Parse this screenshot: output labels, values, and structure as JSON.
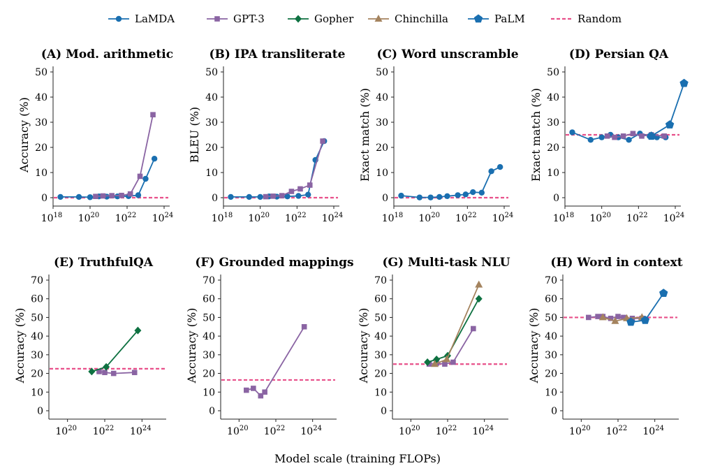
{
  "x_axis_label": "Model scale (training FLOPs)",
  "legend": [
    {
      "name": "LaMDA",
      "color": "#1a6fb0",
      "marker": "circle"
    },
    {
      "name": "GPT-3",
      "color": "#8a64a3",
      "marker": "square"
    },
    {
      "name": "Gopher",
      "color": "#0e7141",
      "marker": "diamond"
    },
    {
      "name": "Chinchilla",
      "color": "#a4835e",
      "marker": "triangle"
    },
    {
      "name": "PaLM",
      "color": "#1a6fb0",
      "marker": "pentagon"
    },
    {
      "name": "Random",
      "color": "#e8508a",
      "marker": "dashed-line"
    }
  ],
  "chart_data": [
    {
      "type": "line",
      "title": "(A) Mod. arithmetic",
      "ylabel": "Accuracy (%)",
      "xscale": "log",
      "xlim": [
        1e+18,
        1e+24
      ],
      "xticks": [
        1e+18,
        1e+20,
        1e+22,
        1e+24
      ],
      "ylim": [
        0,
        50
      ],
      "yticks": [
        0,
        10,
        20,
        30,
        40,
        50
      ],
      "random": 0,
      "series": [
        {
          "name": "LaMDA",
          "x": [
            2.5e+18,
            2.5e+19,
            1e+20,
            3e+20,
            8e+20,
            3e+21,
            1.2e+22,
            4e+22,
            1e+23,
            3e+23
          ],
          "y": [
            0.3,
            0.3,
            0.2,
            0.5,
            0.4,
            0.5,
            0.6,
            1.0,
            7.5,
            15.5
          ]
        },
        {
          "name": "GPT-3",
          "x": [
            2e+20,
            5e+20,
            1.5e+21,
            5e+21,
            1.5e+22,
            5e+22,
            2.5e+23
          ],
          "y": [
            0.5,
            0.7,
            0.8,
            0.9,
            1.5,
            8.5,
            33
          ]
        }
      ]
    },
    {
      "type": "line",
      "title": "(B) IPA transliterate",
      "ylabel": "BLEU (%)",
      "xscale": "log",
      "xlim": [
        1e+18,
        1e+24
      ],
      "xticks": [
        1e+18,
        1e+20,
        1e+22,
        1e+24
      ],
      "ylim": [
        0,
        50
      ],
      "yticks": [
        0,
        10,
        20,
        30,
        40,
        50
      ],
      "random": 0,
      "series": [
        {
          "name": "LaMDA",
          "x": [
            2.5e+18,
            2.5e+19,
            1e+20,
            3e+20,
            8e+20,
            3e+21,
            1.2e+22,
            4e+22,
            1e+23,
            3e+23
          ],
          "y": [
            0.3,
            0.3,
            0.3,
            0.5,
            0.4,
            0.5,
            0.7,
            1.2,
            15,
            22.5
          ]
        },
        {
          "name": "GPT-3",
          "x": [
            2e+20,
            5e+20,
            1.5e+21,
            5e+21,
            1.5e+22,
            5e+22,
            2.5e+23
          ],
          "y": [
            0.4,
            0.6,
            0.8,
            2.5,
            3.5,
            5,
            22.5
          ]
        }
      ]
    },
    {
      "type": "line",
      "title": "(C) Word unscramble",
      "ylabel": "Exact match (%)",
      "xscale": "log",
      "xlim": [
        1e+18,
        1e+24
      ],
      "xticks": [
        1e+18,
        1e+20,
        1e+22,
        1e+24
      ],
      "ylim": [
        0,
        50
      ],
      "yticks": [
        0,
        10,
        20,
        30,
        40,
        50
      ],
      "random": 0,
      "series": [
        {
          "name": "LaMDA",
          "x": [
            2.5e+18,
            2.5e+19,
            1e+20,
            3e+20,
            8e+20,
            3e+21,
            8e+21,
            2e+22,
            6e+22,
            2e+23,
            6e+23
          ],
          "y": [
            0.8,
            0.1,
            0.1,
            0.3,
            0.6,
            1.0,
            1.3,
            2.2,
            2.0,
            10.5,
            12.2
          ]
        }
      ]
    },
    {
      "type": "line",
      "title": "(D) Persian QA",
      "ylabel": "Exact match (%)",
      "xscale": "log",
      "xlim": [
        1e+18,
        1e+24
      ],
      "xticks": [
        1e+18,
        1e+20,
        1e+22,
        1e+24
      ],
      "ylim": [
        0,
        50
      ],
      "yticks": [
        0,
        10,
        20,
        30,
        40,
        50
      ],
      "random": 25,
      "series": [
        {
          "name": "LaMDA",
          "x": [
            2.5e+18,
            2.5e+19,
            1e+20,
            3e+20,
            8e+20,
            3e+21,
            1.2e+22,
            4e+22,
            1e+23,
            3e+23
          ],
          "y": [
            26,
            23,
            24,
            25,
            24,
            23,
            25.5,
            24.5,
            24,
            24
          ]
        },
        {
          "name": "GPT-3",
          "x": [
            2e+20,
            5e+20,
            1.5e+21,
            5e+21,
            1.5e+22,
            5e+22,
            2.5e+23
          ],
          "y": [
            24.5,
            24.0,
            24.5,
            25.5,
            24.5,
            25.0,
            24.5
          ]
        },
        {
          "name": "PaLM",
          "x": [
            5e+22,
            5e+23,
            3e+24
          ],
          "y": [
            24.5,
            29,
            45.5
          ]
        }
      ]
    },
    {
      "type": "line",
      "title": "(E) TruthfulQA",
      "ylabel": "Accuracy (%)",
      "xscale": "log",
      "xlim": [
        1e+19,
        1e+25
      ],
      "xticks": [
        1e+20,
        1e+22,
        1e+24
      ],
      "ylim": [
        0,
        70
      ],
      "yticks": [
        0,
        10,
        20,
        30,
        40,
        50,
        60,
        70
      ],
      "random": 22.5,
      "series": [
        {
          "name": "GPT-3",
          "x": [
            5e+21,
            1e+22,
            3e+22,
            4e+23
          ],
          "y": [
            21,
            20.5,
            20,
            20.5
          ]
        },
        {
          "name": "Gopher",
          "x": [
            2e+21,
            1.2e+22,
            6e+23
          ],
          "y": [
            21,
            23.5,
            43
          ]
        }
      ]
    },
    {
      "type": "line",
      "title": "(F) Grounded mappings",
      "ylabel": "Accuracy (%)",
      "xscale": "log",
      "xlim": [
        1e+19,
        1e+25
      ],
      "xticks": [
        1e+20,
        1e+22,
        1e+24
      ],
      "ylim": [
        0,
        70
      ],
      "yticks": [
        0,
        10,
        20,
        30,
        40,
        50,
        60,
        70
      ],
      "random": 16.5,
      "series": [
        {
          "name": "GPT-3",
          "x": [
            2.5e+20,
            6e+20,
            1.5e+21,
            2.5e+21,
            3.5e+23
          ],
          "y": [
            11,
            12,
            8,
            10,
            45
          ]
        }
      ]
    },
    {
      "type": "line",
      "title": "(G) Multi-task NLU",
      "ylabel": "Accuracy (%)",
      "xscale": "log",
      "xlim": [
        1e+19,
        1e+25
      ],
      "xticks": [
        1e+20,
        1e+22,
        1e+24
      ],
      "ylim": [
        0,
        70
      ],
      "yticks": [
        0,
        10,
        20,
        30,
        40,
        50,
        60,
        70
      ],
      "random": 25,
      "series": [
        {
          "name": "GPT-3",
          "x": [
            1e+21,
            2.5e+21,
            7e+21,
            2e+22,
            2.5e+23
          ],
          "y": [
            25,
            25.5,
            25,
            26,
            44
          ]
        },
        {
          "name": "Gopher",
          "x": [
            8e+20,
            2.5e+21,
            1e+22,
            5e+23
          ],
          "y": [
            26,
            27.5,
            29.5,
            60
          ]
        },
        {
          "name": "Chinchilla",
          "x": [
            2e+21,
            9e+21,
            5e+23
          ],
          "y": [
            25,
            27.5,
            67.5
          ]
        }
      ]
    },
    {
      "type": "line",
      "title": "(H) Word in context",
      "ylabel": "Accuracy (%)",
      "xscale": "log",
      "xlim": [
        1e+19,
        1e+25
      ],
      "xticks": [
        1e+20,
        1e+22,
        1e+24
      ],
      "ylim": [
        0,
        70
      ],
      "yticks": [
        0,
        10,
        20,
        30,
        40,
        50,
        60,
        70
      ],
      "random": 50,
      "series": [
        {
          "name": "GPT-3",
          "x": [
            2.5e+20,
            8e+20,
            1.5e+21,
            4e+21,
            1e+22,
            2e+22,
            6e+22,
            2e+23
          ],
          "y": [
            50,
            50.5,
            50.5,
            49.5,
            50.5,
            50,
            49.5,
            49.5
          ]
        },
        {
          "name": "Chinchilla",
          "x": [
            1.5e+21,
            7e+21,
            3e+22,
            2e+23
          ],
          "y": [
            50,
            48,
            49.5,
            50
          ]
        },
        {
          "name": "PaLM",
          "x": [
            5e+22,
            3e+23,
            3e+24
          ],
          "y": [
            47.5,
            48.5,
            63
          ]
        }
      ]
    }
  ]
}
